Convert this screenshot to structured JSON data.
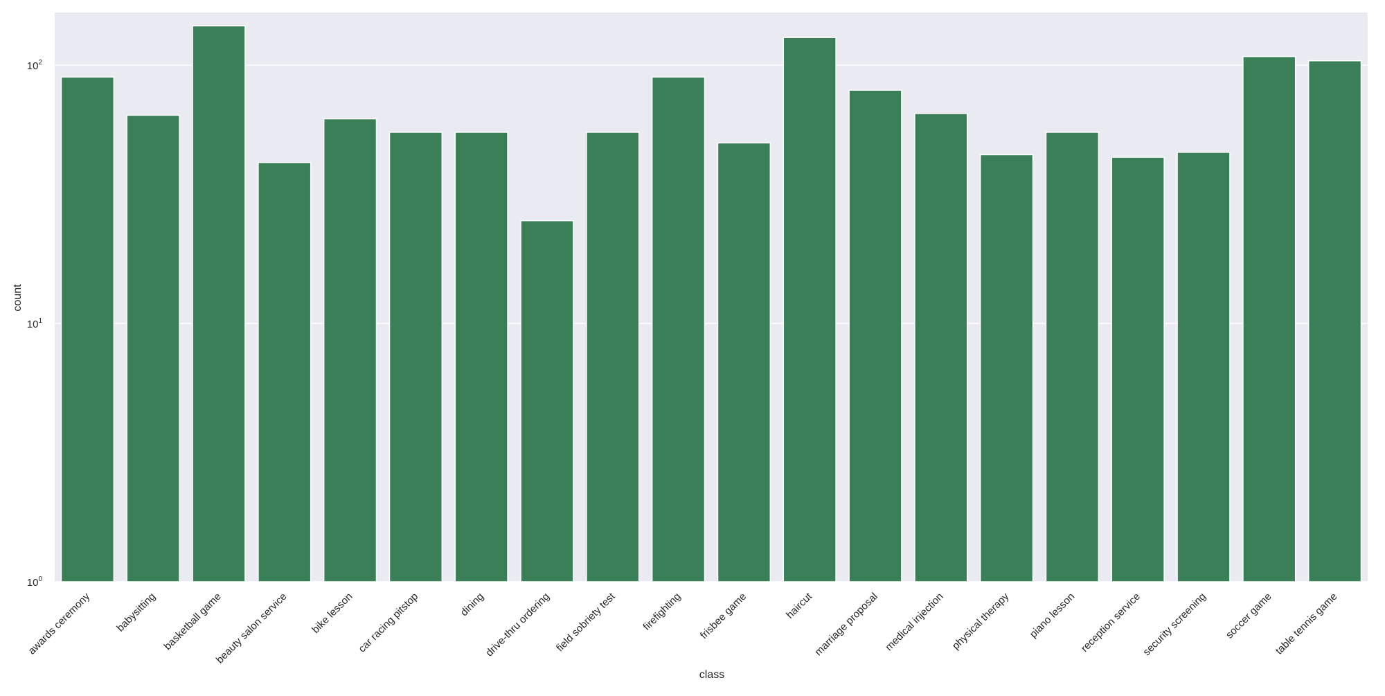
{
  "chart_data": {
    "type": "bar",
    "xlabel": "class",
    "ylabel": "count",
    "yscale": "log",
    "ylim": [
      1,
      160
    ],
    "y_ticks": [
      {
        "value": 1,
        "base": "10",
        "exp": "0"
      },
      {
        "value": 10,
        "base": "10",
        "exp": "1"
      },
      {
        "value": 100,
        "base": "10",
        "exp": "2"
      }
    ],
    "grid": true,
    "categories": [
      "awards ceremony",
      "babysitting",
      "basketball game",
      "beauty salon service",
      "bike lesson",
      "car racing pitstop",
      "dining",
      "drive-thru ordering",
      "field sobriety test",
      "firefighting",
      "frisbee game",
      "haircut",
      "marriage proposal",
      "medical injection",
      "physical therapy",
      "piano lesson",
      "reception service",
      "security screening",
      "soccer game",
      "table tennis game"
    ],
    "values": [
      90,
      64,
      142,
      42,
      62,
      55,
      55,
      25,
      55,
      90,
      50,
      128,
      80,
      65,
      45,
      55,
      44,
      46,
      108,
      104
    ],
    "colors": {
      "bar": "#3a7f58",
      "plot_background": "#eaeaf2",
      "grid": "#ffffff",
      "text": "#262626"
    }
  }
}
